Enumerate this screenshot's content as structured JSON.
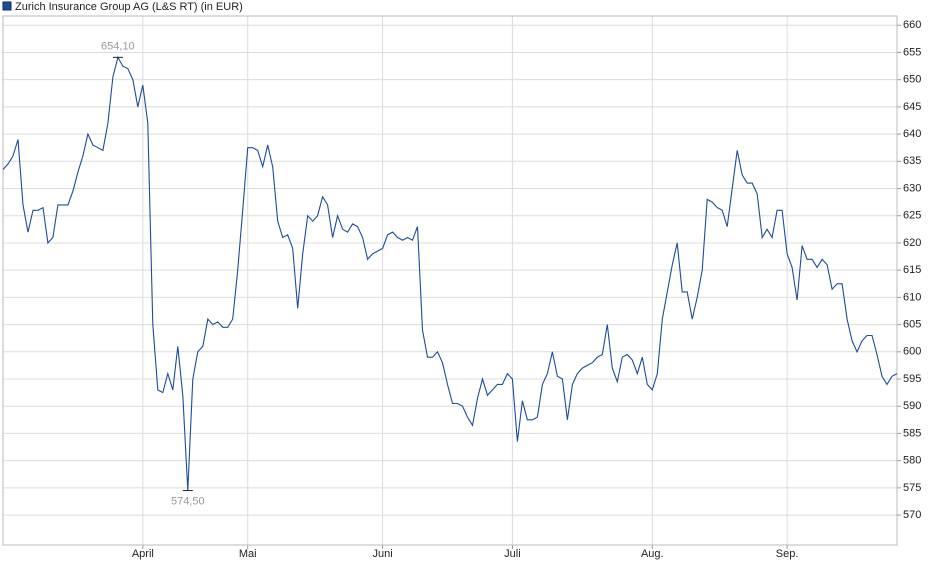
{
  "chart_data": {
    "type": "line",
    "series": [
      {
        "name": "Zurich Insurance Group AG (L&S RT) (in EUR)",
        "color": "#1c4c9c",
        "values": [
          633.5,
          634.5,
          636,
          639,
          627,
          622,
          626,
          626,
          626.5,
          620,
          621,
          627,
          627,
          627,
          629.5,
          633,
          636,
          640,
          638,
          637.5,
          637,
          642,
          650.5,
          654.1,
          652.5,
          652,
          650,
          645,
          649,
          642,
          605,
          593,
          592.5,
          596,
          593,
          601,
          592,
          574.5,
          595,
          600,
          601,
          606,
          605,
          605.5,
          604.5,
          604.5,
          606,
          615,
          626,
          637.5,
          637.5,
          637,
          634,
          638,
          634,
          624,
          621,
          621.5,
          619,
          608,
          618,
          625,
          624,
          625,
          628.5,
          627,
          621,
          625,
          622.5,
          622,
          623.5,
          623,
          621,
          617,
          618,
          618.5,
          619,
          621.5,
          622,
          621,
          620.5,
          621,
          620.5,
          623,
          604,
          599,
          599,
          600,
          598,
          594,
          590.5,
          590.5,
          590,
          588,
          586.5,
          591.5,
          595,
          592,
          593,
          594,
          594,
          596,
          595,
          583.5,
          591,
          587.5,
          587.5,
          588,
          594,
          596,
          600,
          595.5,
          595,
          587.5,
          594,
          596,
          597,
          597.5,
          598,
          599,
          599.5,
          605,
          597,
          594.5,
          599,
          599.5,
          598.5,
          596,
          599,
          594,
          593,
          596,
          606,
          611,
          616,
          620,
          611,
          611,
          606,
          610,
          615,
          628,
          627.5,
          626.5,
          626,
          623,
          630,
          637,
          632.5,
          631,
          631,
          629,
          621,
          622.5,
          621,
          626,
          626,
          618,
          615.5,
          609.5,
          619.5,
          617,
          617,
          615.5,
          617,
          616,
          611.5,
          612.5,
          612.5,
          606,
          602,
          600,
          602,
          603,
          603,
          599.5,
          595.5,
          594,
          595.5,
          596
        ]
      }
    ],
    "categories": [
      null,
      null,
      null,
      null,
      null,
      null,
      null,
      null,
      null,
      null,
      null,
      null,
      null,
      null,
      null,
      null,
      null,
      null,
      null,
      null,
      null,
      null,
      null,
      null,
      null,
      null,
      null,
      null,
      "April",
      null,
      null,
      null,
      null,
      null,
      null,
      null,
      null,
      null,
      null,
      null,
      null,
      null,
      null,
      null,
      null,
      null,
      null,
      null,
      null,
      "Mai",
      null,
      null,
      null,
      null,
      null,
      null,
      null,
      null,
      null,
      null,
      null,
      null,
      null,
      null,
      null,
      null,
      null,
      null,
      null,
      null,
      null,
      null,
      null,
      null,
      null,
      null,
      "Juni",
      null,
      null,
      null,
      null,
      null,
      null,
      null,
      null,
      null,
      null,
      null,
      null,
      null,
      null,
      null,
      null,
      null,
      null,
      null,
      null,
      null,
      null,
      null,
      null,
      null,
      "Juli",
      null,
      null,
      null,
      null,
      null,
      null,
      null,
      null,
      null,
      null,
      null,
      null,
      null,
      null,
      null,
      null,
      null,
      null,
      null,
      null,
      null,
      null,
      null,
      null,
      null,
      null,
      null,
      "Aug.",
      null,
      null,
      null,
      null,
      null,
      null,
      null,
      null,
      null,
      null,
      null,
      null,
      null,
      null,
      null,
      null,
      null,
      null,
      null,
      null,
      null,
      null,
      null,
      null,
      null,
      null,
      "Sep.",
      null,
      null,
      null,
      null,
      null,
      null,
      null,
      null,
      null,
      null,
      null,
      null,
      null,
      null,
      null,
      null,
      null,
      null,
      null,
      null,
      null,
      null
    ],
    "annotations": [
      {
        "value": 654.1,
        "label": "654,10"
      },
      {
        "value": 574.5,
        "label": "574,50"
      }
    ],
    "ylim": [
      564.5,
      661.7
    ],
    "yticks": [
      570,
      575,
      580,
      585,
      590,
      595,
      600,
      605,
      610,
      615,
      620,
      625,
      630,
      635,
      640,
      645,
      650,
      655,
      660
    ],
    "grid": true
  }
}
